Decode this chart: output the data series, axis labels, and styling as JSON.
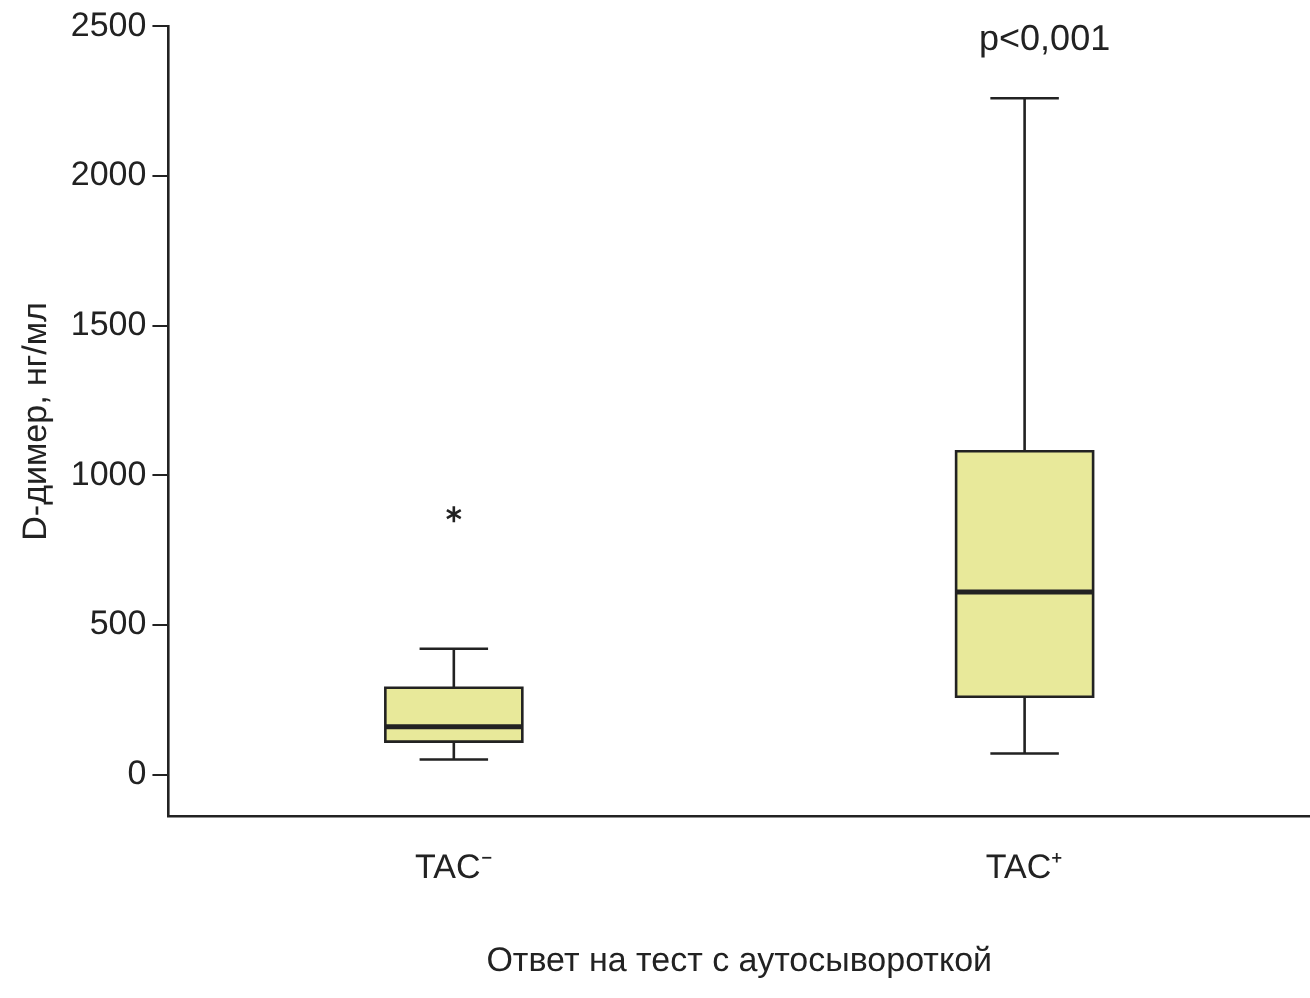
{
  "chart_data": {
    "type": "box",
    "xlabel": "Ответ на тест с аутосывороткой",
    "ylabel": "D-димер, нг/мл",
    "categories": [
      "TAC⁻",
      "TAC⁺"
    ],
    "boxes": [
      {
        "low": 50,
        "q1": 110,
        "median": 160,
        "q3": 290,
        "high": 420,
        "outliers": [
          870
        ]
      },
      {
        "low": 70,
        "q1": 260,
        "median": 610,
        "q3": 1080,
        "high": 2260
      }
    ],
    "color": "#e8e99a",
    "marker": "star",
    "ylim": [
      -140,
      2500
    ],
    "yticks": [
      0,
      500,
      1000,
      1500,
      2000,
      2500
    ],
    "grid": false,
    "legend": false,
    "annotations": [
      "p<0,001"
    ]
  }
}
